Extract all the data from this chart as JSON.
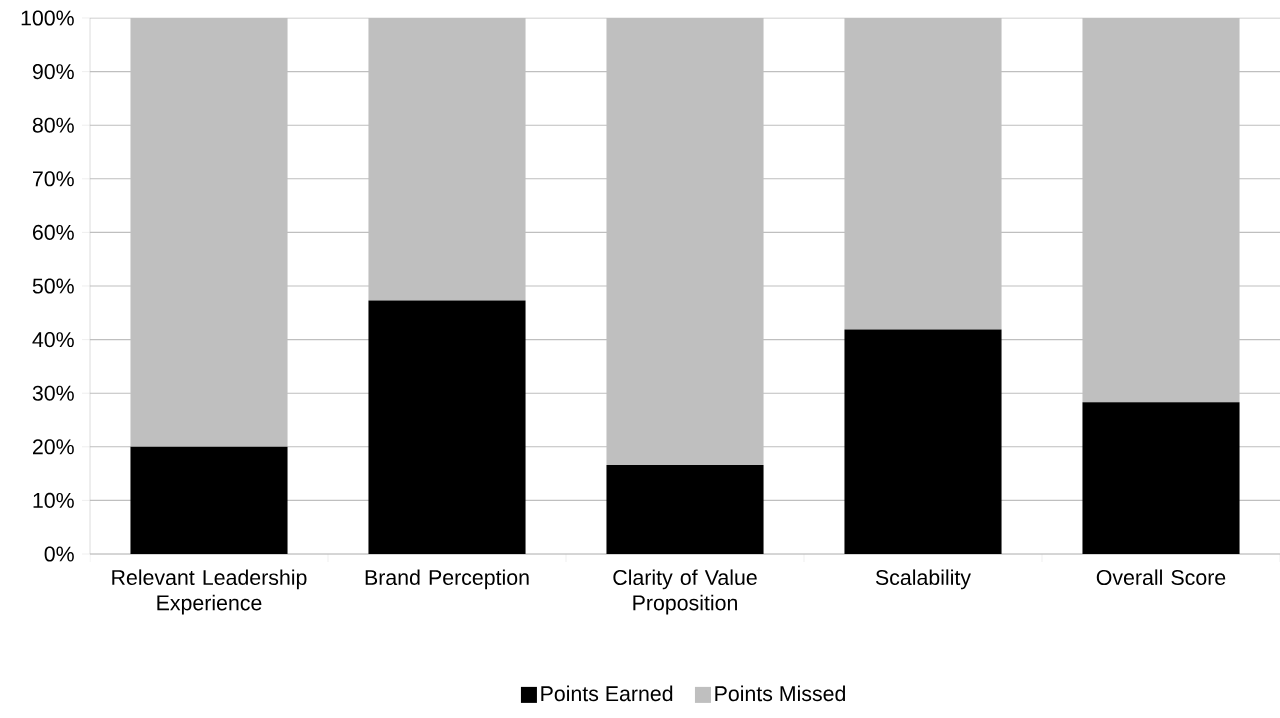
{
  "chart_data": {
    "type": "bar",
    "stacked": true,
    "categories": [
      "Relevant Leadership Experience",
      "Brand Perception",
      "Clarity of Value Proposition",
      "Scalability",
      "Overall Score"
    ],
    "series": [
      {
        "name": "Points Earned",
        "color": "#000000",
        "values": [
          20,
          47.3,
          16.6,
          41.9,
          28.3
        ]
      },
      {
        "name": "Points Missed",
        "color": "#bfbfbf",
        "values": [
          80,
          52.7,
          83.4,
          58.1,
          71.7
        ]
      }
    ],
    "ylim": [
      0,
      100
    ],
    "yticks": [
      {
        "value": 0,
        "label": "0%"
      },
      {
        "value": 10,
        "label": "10%"
      },
      {
        "value": 20,
        "label": "20%"
      },
      {
        "value": 30,
        "label": "30%"
      },
      {
        "value": 40,
        "label": "40%"
      },
      {
        "value": 50,
        "label": "50%"
      },
      {
        "value": 60,
        "label": "60%"
      },
      {
        "value": 70,
        "label": "70%"
      },
      {
        "value": 80,
        "label": "80%"
      },
      {
        "value": 90,
        "label": "90%"
      },
      {
        "value": 100,
        "label": "100%"
      }
    ],
    "grid": "y",
    "legend": "bottom"
  }
}
